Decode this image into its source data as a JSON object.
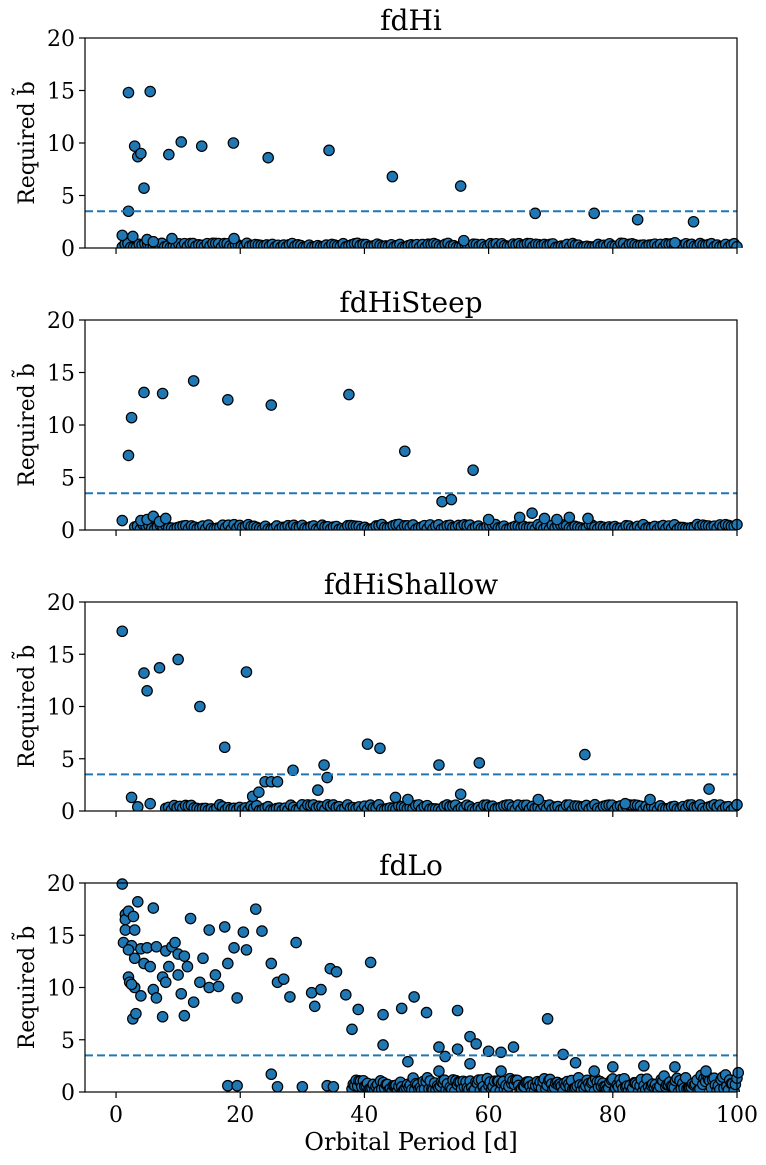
{
  "chart_data": [
    {
      "type": "scatter",
      "title": "fdHi",
      "ylabel": "Required b̃",
      "xlabel": "",
      "xlim": [
        -5,
        100
      ],
      "ylim": [
        0,
        20
      ],
      "xticks": [
        0,
        20,
        40,
        60,
        80,
        100
      ],
      "yticks": [
        0,
        5,
        10,
        15,
        20
      ],
      "threshold": 3.5,
      "grid": false,
      "x_tick_labels_shown": false,
      "points": [
        [
          1,
          1.2
        ],
        [
          2,
          14.8
        ],
        [
          2,
          3.5
        ],
        [
          2.7,
          1.1
        ],
        [
          3,
          9.7
        ],
        [
          3.5,
          8.7
        ],
        [
          4,
          9
        ],
        [
          4.5,
          5.7
        ],
        [
          5.5,
          14.9
        ],
        [
          8.5,
          8.9
        ],
        [
          10.5,
          10.1
        ],
        [
          13.8,
          9.7
        ],
        [
          18.9,
          10
        ],
        [
          24.5,
          8.6
        ],
        [
          34.3,
          9.3
        ],
        [
          44.5,
          6.8
        ],
        [
          55.5,
          5.9
        ],
        [
          67.5,
          3.3
        ],
        [
          77,
          3.3
        ],
        [
          84,
          2.7
        ],
        [
          93,
          2.5
        ],
        [
          5,
          0.8
        ],
        [
          6,
          0.6
        ],
        [
          9,
          0.9
        ],
        [
          19,
          0.9
        ],
        [
          56,
          0.7
        ],
        [
          90,
          0.5
        ]
      ],
      "baseline": {
        "x_start": 1,
        "x_end": 100,
        "y_max": 0.5
      }
    },
    {
      "type": "scatter",
      "title": "fdHiSteep",
      "ylabel": "Required b̃",
      "xlabel": "",
      "xlim": [
        -5,
        100
      ],
      "ylim": [
        0,
        20
      ],
      "xticks": [
        0,
        20,
        40,
        60,
        80,
        100
      ],
      "yticks": [
        0,
        5,
        10,
        15,
        20
      ],
      "threshold": 3.5,
      "grid": false,
      "x_tick_labels_shown": false,
      "points": [
        [
          1,
          0.9
        ],
        [
          2,
          7.1
        ],
        [
          2.5,
          10.7
        ],
        [
          4.5,
          13.1
        ],
        [
          7.5,
          13
        ],
        [
          12.5,
          14.2
        ],
        [
          18,
          12.4
        ],
        [
          25,
          11.9
        ],
        [
          37.5,
          12.9
        ],
        [
          46.5,
          7.5
        ],
        [
          52.5,
          2.7
        ],
        [
          54,
          2.9
        ],
        [
          57.5,
          5.7
        ],
        [
          4,
          0.9
        ],
        [
          5,
          1
        ],
        [
          6,
          1.3
        ],
        [
          7,
          0.8
        ],
        [
          8,
          1.1
        ],
        [
          60,
          1
        ],
        [
          65,
          1.2
        ],
        [
          67,
          1.6
        ],
        [
          69,
          1.1
        ],
        [
          71,
          1
        ],
        [
          73,
          1.2
        ],
        [
          76,
          1.1
        ]
      ],
      "baseline": {
        "x_start": 3,
        "x_end": 100,
        "y_max": 0.6
      }
    },
    {
      "type": "scatter",
      "title": "fdHiShallow",
      "ylabel": "Required b̃",
      "xlabel": "",
      "xlim": [
        -5,
        100
      ],
      "ylim": [
        0,
        20
      ],
      "xticks": [
        0,
        20,
        40,
        60,
        80,
        100
      ],
      "yticks": [
        0,
        5,
        10,
        15,
        20
      ],
      "threshold": 3.5,
      "grid": false,
      "x_tick_labels_shown": false,
      "points": [
        [
          1,
          17.2
        ],
        [
          2.5,
          1.3
        ],
        [
          3.5,
          0.4
        ],
        [
          4.5,
          13.2
        ],
        [
          5,
          11.5
        ],
        [
          5.5,
          0.7
        ],
        [
          7,
          13.7
        ],
        [
          10,
          14.5
        ],
        [
          13.5,
          10
        ],
        [
          17.5,
          6.1
        ],
        [
          21,
          13.3
        ],
        [
          24,
          2.8
        ],
        [
          25,
          2.8
        ],
        [
          26,
          2.8
        ],
        [
          28.5,
          3.9
        ],
        [
          32.5,
          2
        ],
        [
          33.5,
          4.4
        ],
        [
          34,
          3.2
        ],
        [
          40.5,
          6.4
        ],
        [
          42.5,
          6
        ],
        [
          52,
          4.4
        ],
        [
          58.5,
          4.6
        ],
        [
          75.5,
          5.4
        ],
        [
          95.5,
          2.1
        ],
        [
          22,
          1.4
        ],
        [
          23,
          1.8
        ],
        [
          45,
          1.3
        ],
        [
          47,
          1.1
        ],
        [
          55.5,
          1.6
        ],
        [
          68,
          1.1
        ],
        [
          82,
          0.7
        ],
        [
          86,
          1.1
        ]
      ],
      "baseline": {
        "x_start": 8,
        "x_end": 100,
        "y_max": 0.7
      }
    },
    {
      "type": "scatter",
      "title": "fdLo",
      "ylabel": "Required b̃",
      "xlabel": "Orbital Period [d]",
      "xlim": [
        -5,
        100
      ],
      "ylim": [
        0,
        20
      ],
      "xticks": [
        0,
        20,
        40,
        60,
        80,
        100
      ],
      "yticks": [
        0,
        5,
        10,
        15,
        20
      ],
      "threshold": 3.5,
      "grid": false,
      "x_tick_labels_shown": true,
      "points": [
        [
          1,
          19.9
        ],
        [
          1.5,
          17
        ],
        [
          1.5,
          16.5
        ],
        [
          2,
          17.3
        ],
        [
          1.5,
          15.5
        ],
        [
          1.2,
          14.3
        ],
        [
          2.8,
          16.8
        ],
        [
          2.5,
          14
        ],
        [
          2,
          13.6
        ],
        [
          3.5,
          18.2
        ],
        [
          3,
          15.5
        ],
        [
          3,
          12.8
        ],
        [
          2,
          11
        ],
        [
          2.2,
          10.5
        ],
        [
          3,
          10
        ],
        [
          2.5,
          10.3
        ],
        [
          2.7,
          7
        ],
        [
          3.2,
          7.5
        ],
        [
          4,
          9.2
        ],
        [
          4,
          13.7
        ],
        [
          5,
          13.8
        ],
        [
          4.5,
          12.3
        ],
        [
          5.5,
          12
        ],
        [
          6,
          17.6
        ],
        [
          6.5,
          13.9
        ],
        [
          6,
          9.8
        ],
        [
          6.5,
          9
        ],
        [
          7.5,
          7.2
        ],
        [
          7.5,
          11
        ],
        [
          8,
          10.5
        ],
        [
          8,
          13.5
        ],
        [
          8.5,
          12
        ],
        [
          9,
          13.9
        ],
        [
          9.5,
          14.3
        ],
        [
          10,
          13.2
        ],
        [
          10,
          11.2
        ],
        [
          11,
          13
        ],
        [
          11.5,
          12
        ],
        [
          12,
          16.6
        ],
        [
          11,
          7.3
        ],
        [
          10.5,
          9.4
        ],
        [
          12.5,
          8.6
        ],
        [
          13.5,
          10.5
        ],
        [
          14,
          12.8
        ],
        [
          15,
          15.5
        ],
        [
          15,
          10
        ],
        [
          16,
          11.2
        ],
        [
          16.5,
          10.1
        ],
        [
          17.5,
          15.8
        ],
        [
          18,
          12.3
        ],
        [
          19,
          13.8
        ],
        [
          19.5,
          9
        ],
        [
          20.5,
          15.3
        ],
        [
          21,
          13.6
        ],
        [
          22.5,
          17.5
        ],
        [
          23.5,
          15.4
        ],
        [
          25,
          12.3
        ],
        [
          26,
          10.5
        ],
        [
          27,
          10.8
        ],
        [
          28,
          9.1
        ],
        [
          29,
          14.3
        ],
        [
          31.5,
          9.5
        ],
        [
          32,
          8.2
        ],
        [
          33,
          9.8
        ],
        [
          34.5,
          11.8
        ],
        [
          35.5,
          11.5
        ],
        [
          37,
          9.3
        ],
        [
          38,
          6
        ],
        [
          39,
          7.9
        ],
        [
          41,
          12.4
        ],
        [
          43,
          4.5
        ],
        [
          43,
          7.4
        ],
        [
          46,
          8
        ],
        [
          48,
          9.1
        ],
        [
          50,
          7.6
        ],
        [
          52,
          4.3
        ],
        [
          53,
          3.4
        ],
        [
          55,
          7.8
        ],
        [
          55,
          4.1
        ],
        [
          57,
          5.3
        ],
        [
          58,
          4.6
        ],
        [
          60,
          3.9
        ],
        [
          62,
          3.8
        ],
        [
          64,
          4.3
        ],
        [
          69.5,
          7
        ],
        [
          18,
          0.6
        ],
        [
          19.5,
          0.6
        ],
        [
          25,
          1.7
        ],
        [
          26,
          0.5
        ],
        [
          30,
          0.5
        ],
        [
          34,
          0.6
        ],
        [
          35,
          0.5
        ],
        [
          47,
          2.9
        ],
        [
          52,
          2
        ],
        [
          57,
          2.7
        ],
        [
          62,
          2
        ],
        [
          72,
          3.6
        ],
        [
          74,
          2.8
        ],
        [
          77,
          2
        ],
        [
          80,
          2.4
        ],
        [
          85,
          2.5
        ],
        [
          90,
          2.4
        ],
        [
          95,
          2
        ]
      ],
      "baseline": {
        "x_start": 38,
        "x_end": 100,
        "y_max": 1.4,
        "x_rise_start": 85,
        "y_end": 2.1
      }
    }
  ]
}
